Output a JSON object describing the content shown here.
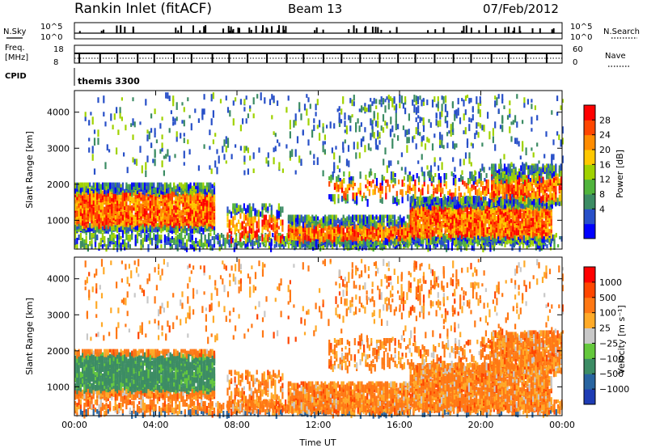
{
  "header": {
    "station": "Rankin Inlet (fitACF)",
    "beam": "Beam 13",
    "date": "07/Feb/2012"
  },
  "top_panels": {
    "nsky_label": "N.Sky",
    "nsky_ticks": [
      "10^5",
      "10^0"
    ],
    "nsearch_label": "N.Search",
    "nsearch_ticks": [
      "10^5",
      "10^0"
    ],
    "freq_label_1": "Freq.",
    "freq_label_2": "[MHz]",
    "freq_ticks": [
      "18",
      "8"
    ],
    "nave_label": "Nave",
    "nave_ticks": [
      "60",
      "0"
    ],
    "cpid_label": "CPID",
    "cpid_value": "themis 3300"
  },
  "chart_data": [
    {
      "type": "heatmap",
      "name": "power",
      "ylabel": "Slant Range [km]",
      "xlabel": "",
      "x_range_hours": [
        0,
        24
      ],
      "ylim": [
        200,
        4600
      ],
      "x_ticks": [
        "00:00",
        "04:00",
        "08:00",
        "12:00",
        "16:00",
        "20:00",
        "00:00"
      ],
      "y_ticks": [
        1000,
        2000,
        3000,
        4000
      ],
      "colorbar": {
        "label": "Power [dB]",
        "ticks": [
          "28",
          "24",
          "20",
          "16",
          "12",
          "8",
          "4"
        ],
        "colors": [
          "#0000ff",
          "#2850c8",
          "#3c8c64",
          "#50b43c",
          "#a0d200",
          "#ffc800",
          "#ff8c00",
          "#ff4600",
          "#ff0000"
        ]
      }
    },
    {
      "type": "heatmap",
      "name": "velocity",
      "ylabel": "Slant Range [km]",
      "xlabel": "Time UT",
      "x_range_hours": [
        0,
        24
      ],
      "ylim": [
        200,
        4600
      ],
      "x_ticks": [
        "00:00",
        "04:00",
        "08:00",
        "12:00",
        "16:00",
        "20:00",
        "00:00"
      ],
      "y_ticks": [
        1000,
        2000,
        3000,
        4000
      ],
      "colorbar": {
        "label": "Velocity [m s⁻¹]",
        "ticks": [
          "1000",
          "500",
          "100",
          "25",
          "−25",
          "−100",
          "−500",
          "−1000"
        ],
        "colors": [
          "#1e3cb4",
          "#2864a0",
          "#3c8c64",
          "#64c83c",
          "#c8c8c8",
          "#ffaa28",
          "#ff7814",
          "#ff4600",
          "#ff0000"
        ]
      }
    }
  ]
}
